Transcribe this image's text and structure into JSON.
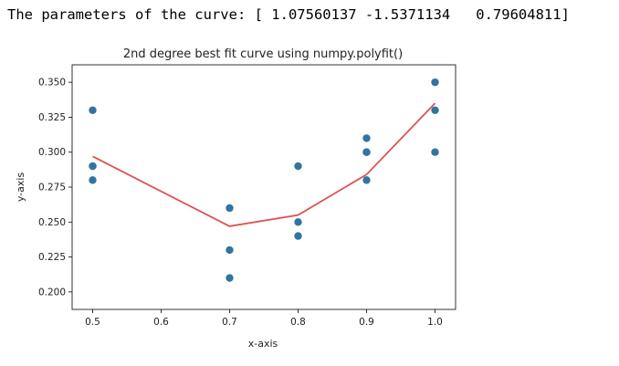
{
  "output_text": "The parameters of the curve: [ 1.07560137 -1.5371134   0.79604811]",
  "chart_data": {
    "type": "scatter",
    "title": "2nd degree best fit curve using numpy.polyfit()",
    "xlabel": "x-axis",
    "ylabel": "y-axis",
    "xlim": [
      0.47,
      1.03
    ],
    "ylim": [
      0.1875,
      0.3625
    ],
    "xticks": [
      0.5,
      0.6,
      0.7,
      0.8,
      0.9,
      1.0
    ],
    "xtick_labels": [
      "0.5",
      "0.6",
      "0.7",
      "0.8",
      "0.9",
      "1.0"
    ],
    "yticks": [
      0.2,
      0.225,
      0.25,
      0.275,
      0.3,
      0.325,
      0.35
    ],
    "ytick_labels": [
      "0.200",
      "0.225",
      "0.250",
      "0.275",
      "0.300",
      "0.325",
      "0.350"
    ],
    "grid": false,
    "points": {
      "color": "#3274a1",
      "x": [
        0.5,
        0.5,
        0.5,
        0.5,
        0.7,
        0.7,
        0.7,
        0.8,
        0.8,
        0.8,
        0.9,
        0.9,
        0.9,
        0.9,
        1.0,
        1.0,
        1.0
      ],
      "y": [
        0.33,
        0.29,
        0.29,
        0.28,
        0.26,
        0.23,
        0.21,
        0.29,
        0.25,
        0.24,
        0.31,
        0.3,
        0.3,
        0.28,
        0.35,
        0.33,
        0.3
      ]
    },
    "fit_line": {
      "color": "#e05050",
      "x": [
        0.5,
        0.5,
        0.5,
        0.5,
        0.7,
        0.7,
        0.7,
        0.8,
        0.8,
        0.8,
        0.9,
        0.9,
        0.9,
        0.9,
        1.0,
        1.0,
        1.0
      ],
      "y": [
        0.297,
        0.297,
        0.297,
        0.297,
        0.247,
        0.247,
        0.247,
        0.255,
        0.255,
        0.255,
        0.284,
        0.284,
        0.284,
        0.284,
        0.335,
        0.335,
        0.335
      ]
    }
  }
}
